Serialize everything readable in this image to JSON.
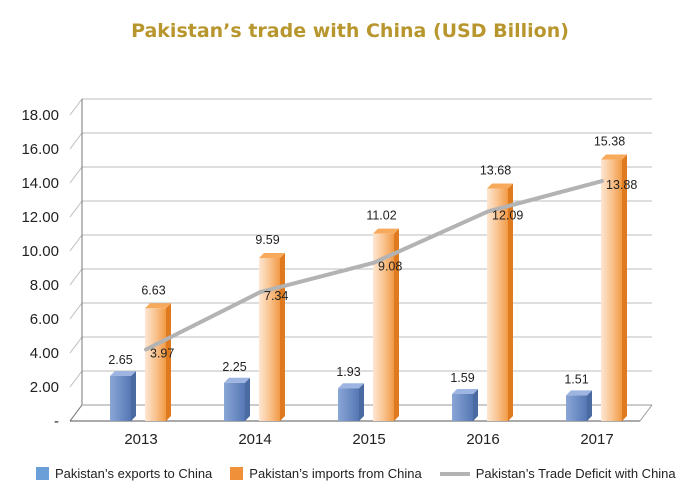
{
  "chart_data": {
    "type": "bar",
    "title": "Pakistan’s trade with China (USD Billion)",
    "categories": [
      "2013",
      "2014",
      "2015",
      "2016",
      "2017"
    ],
    "series": [
      {
        "name": "Pakistan’s exports to China",
        "kind": "bar",
        "color": "#6a8fc8",
        "values": [
          2.65,
          2.25,
          1.93,
          1.59,
          1.51
        ],
        "labels": [
          "2.65",
          "2.25",
          "1.93",
          "1.59",
          "1.51"
        ]
      },
      {
        "name": "Pakistan’s imports from China",
        "kind": "bar",
        "color": "#f0913a",
        "values": [
          6.63,
          9.59,
          11.02,
          13.68,
          15.38
        ],
        "labels": [
          "6.63",
          "9.59",
          "11.02",
          "13.68",
          "15.38"
        ]
      },
      {
        "name": "Pakistan’s Trade Deficit with China",
        "kind": "line",
        "color": "#b3b3b3",
        "values": [
          3.97,
          7.34,
          9.08,
          12.09,
          13.88
        ],
        "labels": [
          "3.97",
          "7.34",
          "9.08",
          "12.09",
          "13.88"
        ]
      }
    ],
    "y_ticks": [
      "-",
      "2.00",
      "4.00",
      "6.00",
      "8.00",
      "10.00",
      "12.00",
      "14.00",
      "16.00",
      "18.00"
    ],
    "ylim": [
      0,
      18
    ],
    "grid": true,
    "legend_position": "bottom"
  }
}
